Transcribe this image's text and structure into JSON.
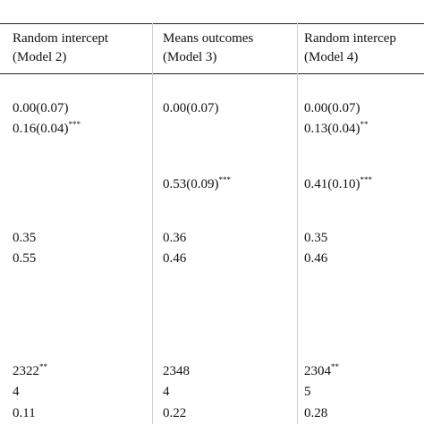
{
  "table": {
    "header": [
      [
        "Random intercept",
        "(Model 2)"
      ],
      [
        "Means outcomes",
        "(Model 3)"
      ],
      [
        "Random intercep",
        "(Model 4)"
      ]
    ],
    "rows": [
      [
        {
          "text": "0.00(0.07)"
        },
        {
          "text": "0.00(0.07)"
        },
        {
          "text": "0.00(0.07)"
        }
      ],
      [
        {
          "text": "0.16(0.04)",
          "sup": "***"
        },
        null,
        {
          "text": "0.13(0.04)",
          "sup": "**"
        }
      ],
      [
        null,
        {
          "text": "0.53(0.09)",
          "sup": "***"
        },
        {
          "text": "0.41(0.10)",
          "sup": "***"
        }
      ],
      [
        {
          "text": "0.35"
        },
        {
          "text": "0.36"
        },
        {
          "text": "0.35"
        }
      ],
      [
        {
          "text": "0.55"
        },
        {
          "text": "0.46"
        },
        {
          "text": "0.46"
        }
      ],
      [
        {
          "text": "2322",
          "sup": "**"
        },
        {
          "text": "2348"
        },
        {
          "text": "2304",
          "sup": "**"
        }
      ],
      [
        {
          "text": "4"
        },
        {
          "text": "4"
        },
        {
          "text": "5"
        }
      ],
      [
        {
          "text": "0.11"
        },
        {
          "text": "0.22"
        },
        {
          "text": "0.28"
        }
      ]
    ]
  }
}
